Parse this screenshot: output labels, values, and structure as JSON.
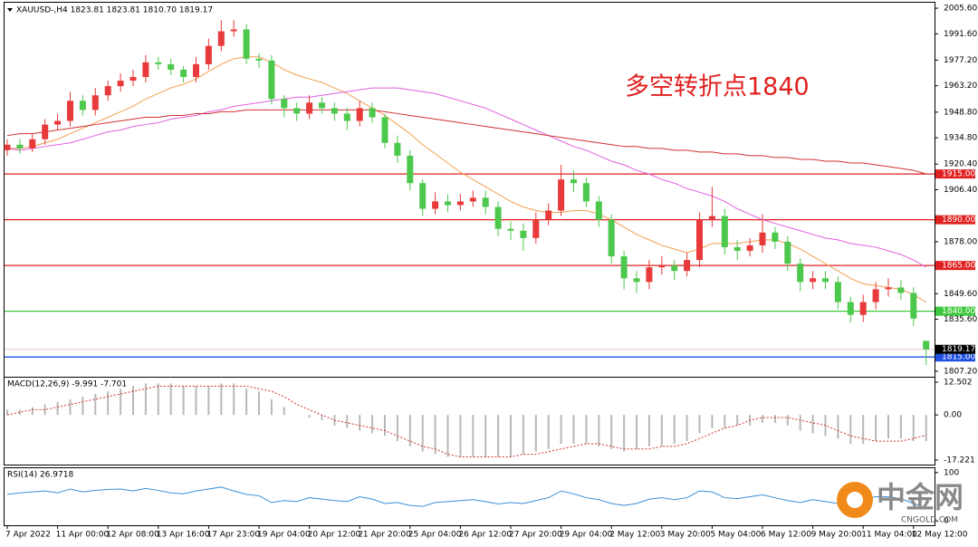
{
  "chart_data": [
    {
      "type": "candlestick",
      "title": "XAUUSD-,H4  1823.81 1823.81 1810.70 1819.17",
      "annotation": "多空转折点1840",
      "categories": [
        "7 Apr 2022",
        null,
        null,
        null,
        "11 Apr 00:00",
        null,
        null,
        null,
        "12 Apr 08:00",
        null,
        null,
        null,
        "13 Apr 16:00",
        null,
        null,
        null,
        "17 Apr 23:00",
        null,
        null,
        null,
        "19 Apr 04:00",
        null,
        null,
        null,
        "20 Apr 12:00",
        null,
        null,
        null,
        "21 Apr 20:00",
        null,
        null,
        null,
        "25 Apr 04:00",
        null,
        null,
        null,
        "26 Apr 12:00",
        null,
        null,
        null,
        "27 Apr 20:00",
        null,
        null,
        null,
        "29 Apr 04:00",
        null,
        null,
        null,
        "2 May 12:00",
        null,
        null,
        null,
        "3 May 20:00",
        null,
        null,
        null,
        "5 May 04:00",
        null,
        null,
        null,
        "6 May 12:00",
        null,
        null,
        null,
        "9 May 20:00",
        null,
        null,
        null,
        "11 May 04:00",
        null,
        null,
        null,
        "12 May 12:00",
        null
      ],
      "open": [
        1928,
        1931,
        1929,
        1934,
        1942,
        1944,
        1955,
        1950,
        1958,
        1963,
        1966,
        1968,
        1976,
        1975,
        1972,
        1968,
        1975,
        1985,
        1993,
        1994,
        1978,
        1977,
        1956,
        1951,
        1948,
        1954,
        1951,
        1948,
        1944,
        1951,
        1946,
        1932,
        1925,
        1910,
        1896,
        1900,
        1898,
        1900,
        1902,
        1897,
        1885,
        1884,
        1880,
        1890,
        1895,
        1912,
        1910,
        1900,
        1890,
        1870,
        1858,
        1856,
        1864,
        1865,
        1862,
        1868,
        1890,
        1892,
        1875,
        1873,
        1876,
        1883,
        1878,
        1866,
        1856,
        1858,
        1856,
        1845,
        1838,
        1845,
        1852,
        1853,
        1850,
        1823.81
      ],
      "high": [
        1934,
        1934,
        1937,
        1945,
        1948,
        1960,
        1958,
        1962,
        1966,
        1970,
        1972,
        1980,
        1979,
        1978,
        1974,
        1979,
        1989,
        1999,
        1999,
        1997,
        1981,
        1980,
        1958,
        1954,
        1958,
        1957,
        1954,
        1951,
        1955,
        1954,
        1948,
        1936,
        1928,
        1912,
        1905,
        1904,
        1904,
        1906,
        1906,
        1900,
        1889,
        1888,
        1894,
        1899,
        1920,
        1917,
        1913,
        1903,
        1893,
        1873,
        1862,
        1868,
        1870,
        1868,
        1872,
        1894,
        1908,
        1896,
        1879,
        1880,
        1893,
        1886,
        1881,
        1869,
        1862,
        1862,
        1859,
        1848,
        1849,
        1856,
        1858,
        1857,
        1853,
        1823.81
      ],
      "low": [
        1925,
        1926,
        1927,
        1931,
        1939,
        1941,
        1947,
        1947,
        1955,
        1960,
        1963,
        1965,
        1972,
        1969,
        1965,
        1965,
        1972,
        1982,
        1990,
        1975,
        1973,
        1953,
        1946,
        1944,
        1945,
        1948,
        1944,
        1939,
        1941,
        1943,
        1929,
        1921,
        1906,
        1892,
        1893,
        1894,
        1895,
        1897,
        1893,
        1881,
        1879,
        1873,
        1877,
        1887,
        1892,
        1905,
        1897,
        1886,
        1866,
        1852,
        1850,
        1852,
        1860,
        1857,
        1859,
        1864,
        1886,
        1871,
        1868,
        1870,
        1872,
        1874,
        1862,
        1851,
        1852,
        1852,
        1841,
        1834,
        1834,
        1841,
        1848,
        1846,
        1832,
        1810.7
      ],
      "close": [
        1931,
        1929,
        1934,
        1942,
        1944,
        1955,
        1950,
        1958,
        1963,
        1966,
        1968,
        1976,
        1975,
        1972,
        1968,
        1975,
        1985,
        1993,
        1994,
        1978,
        1977,
        1956,
        1951,
        1948,
        1954,
        1951,
        1948,
        1944,
        1951,
        1946,
        1932,
        1925,
        1910,
        1896,
        1900,
        1898,
        1900,
        1902,
        1897,
        1885,
        1884,
        1880,
        1890,
        1895,
        1912,
        1910,
        1900,
        1890,
        1870,
        1858,
        1856,
        1864,
        1865,
        1862,
        1868,
        1890,
        1892,
        1875,
        1873,
        1876,
        1883,
        1878,
        1866,
        1856,
        1858,
        1856,
        1845,
        1838,
        1845,
        1852,
        1853,
        1850,
        1836,
        1819.17
      ],
      "up_color": "#e83a3a",
      "down_color": "#4cc84c",
      "overlays": [
        {
          "color": "#f4a050",
          "values": [
            1929,
            1929,
            1930,
            1932,
            1934,
            1937,
            1940,
            1943,
            1946,
            1949,
            1952,
            1956,
            1959,
            1962,
            1964,
            1967,
            1971,
            1975,
            1978,
            1979,
            1979,
            1976,
            1972,
            1969,
            1967,
            1965,
            1962,
            1959,
            1955,
            1951,
            1947,
            1942,
            1937,
            1931,
            1926,
            1921,
            1916,
            1912,
            1908,
            1904,
            1900,
            1897,
            1895,
            1894,
            1894,
            1895,
            1895,
            1893,
            1890,
            1886,
            1882,
            1879,
            1876,
            1874,
            1872,
            1874,
            1877,
            1877,
            1877,
            1878,
            1879,
            1879,
            1877,
            1874,
            1870,
            1866,
            1862,
            1858,
            1855,
            1854,
            1853,
            1852,
            1849,
            1845
          ]
        },
        {
          "color": "#e060e0",
          "values": [
            1929,
            1928,
            1929,
            1930,
            1931,
            1932,
            1934,
            1936,
            1938,
            1939,
            1941,
            1942,
            1943,
            1945,
            1946,
            1947,
            1949,
            1950,
            1952,
            1953,
            1954,
            1955,
            1956,
            1957,
            1957,
            1958,
            1959,
            1960,
            1961,
            1962,
            1962,
            1962,
            1961,
            1960,
            1959,
            1957,
            1955,
            1953,
            1951,
            1948,
            1945,
            1942,
            1939,
            1936,
            1933,
            1930,
            1928,
            1925,
            1922,
            1920,
            1917,
            1915,
            1912,
            1910,
            1907,
            1905,
            1903,
            1900,
            1896,
            1893,
            1890,
            1888,
            1886,
            1884,
            1882,
            1880,
            1879,
            1877,
            1876,
            1875,
            1873,
            1871,
            1868,
            1864
          ]
        },
        {
          "color": "#d03030",
          "values": [
            1936,
            1937,
            1937,
            1938,
            1939,
            1940,
            1941,
            1942,
            1943,
            1944,
            1945,
            1946,
            1946,
            1947,
            1947,
            1948,
            1948,
            1949,
            1949,
            1950,
            1950,
            1950,
            1950,
            1950,
            1950,
            1950,
            1950,
            1950,
            1950,
            1950,
            1949,
            1948,
            1947,
            1946,
            1945,
            1944,
            1943,
            1942,
            1941,
            1940,
            1939,
            1938,
            1937,
            1936,
            1935,
            1934,
            1933,
            1932,
            1931,
            1930,
            1930,
            1929,
            1929,
            1928,
            1928,
            1927,
            1927,
            1926,
            1926,
            1925,
            1925,
            1924,
            1924,
            1923,
            1923,
            1922,
            1922,
            1921,
            1921,
            1920,
            1919,
            1918,
            1917,
            1915
          ]
        }
      ],
      "levels": [
        {
          "value": 1915,
          "label": "1915.00",
          "color": "#e02020"
        },
        {
          "value": 1890,
          "label": "1890.00",
          "color": "#e02020"
        },
        {
          "value": 1865,
          "label": "1865.00",
          "color": "#e02020"
        },
        {
          "value": 1840,
          "label": "1840.00",
          "color": "#3cc83c"
        },
        {
          "value": 1815,
          "label": "1815.00",
          "color": "#2050e0"
        }
      ],
      "price_line": {
        "value": 1819.17,
        "label": "1819.17",
        "color": "#e8c8d0"
      },
      "ylim": [
        1803.7,
        2008.6
      ],
      "yticks": [
        {
          "value": 2005.6,
          "label": "2005.60"
        },
        {
          "value": 1991.6,
          "label": "1991.60"
        },
        {
          "value": 1977.2,
          "label": "1977.20"
        },
        {
          "value": 1963.2,
          "label": "1963.20"
        },
        {
          "value": 1948.8,
          "label": "1948.80"
        },
        {
          "value": 1934.8,
          "label": "1934.80"
        },
        {
          "value": 1920.4,
          "label": "1920.40"
        },
        {
          "value": 1906.4,
          "label": "1906.40"
        },
        {
          "value": 1878,
          "label": "1878.00"
        },
        {
          "value": 1849.6,
          "label": "1849.60"
        },
        {
          "value": 1835.6,
          "label": "1835.60"
        },
        {
          "value": 1807.2,
          "label": "1807.20"
        }
      ]
    },
    {
      "type": "macd",
      "title": "MACD(12,26,9) -9.991 -7.701",
      "histogram": [
        2,
        2,
        3,
        4,
        5,
        6,
        7,
        8,
        9,
        10,
        11,
        12,
        12,
        12,
        11,
        11,
        11,
        12,
        12,
        10,
        9,
        6,
        3,
        0,
        -1,
        -2,
        -4,
        -5,
        -6,
        -7,
        -8,
        -10,
        -12,
        -14,
        -15,
        -16,
        -16,
        -16,
        -16,
        -16,
        -16,
        -15,
        -14,
        -13,
        -11,
        -11,
        -11,
        -12,
        -13,
        -14,
        -13,
        -12,
        -12,
        -11,
        -10,
        -7,
        -5,
        -5,
        -4,
        -4,
        -3,
        -3,
        -4,
        -6,
        -7,
        -8,
        -9,
        -11,
        -11,
        -10,
        -9,
        -9,
        -10,
        -9.991
      ],
      "signal": [
        0,
        1,
        2,
        2,
        3,
        4,
        5,
        6,
        7,
        8,
        9,
        10,
        11,
        11,
        11,
        11,
        11,
        11,
        11,
        11,
        10,
        9,
        7,
        4,
        2,
        0,
        -2,
        -3,
        -4,
        -5,
        -6,
        -8,
        -10,
        -12,
        -13,
        -15,
        -16,
        -16,
        -16,
        -16,
        -16,
        -15,
        -15,
        -14,
        -13,
        -12,
        -11,
        -11,
        -12,
        -13,
        -13,
        -13,
        -12,
        -12,
        -11,
        -9,
        -7,
        -5,
        -4,
        -2,
        -1,
        -1,
        -1,
        -2,
        -3,
        -4,
        -6,
        -8,
        -9,
        -10,
        -10,
        -10,
        -9,
        -7.701
      ],
      "histogram_color": "#b8b8b8",
      "signal_color": "#d03030",
      "ylim": [
        -18.95,
        14.23
      ],
      "yticks": [
        12.502,
        {
          "value": 0,
          "label": "0.00"
        },
        -17.221
      ]
    },
    {
      "type": "line",
      "title": "RSI(14) 26.9718",
      "values": [
        55,
        58,
        60,
        62,
        58,
        66,
        60,
        63,
        65,
        66,
        62,
        67,
        63,
        58,
        56,
        62,
        66,
        70,
        62,
        55,
        52,
        38,
        42,
        40,
        48,
        45,
        42,
        40,
        50,
        45,
        36,
        38,
        32,
        30,
        38,
        40,
        42,
        44,
        40,
        35,
        38,
        36,
        42,
        48,
        62,
        56,
        48,
        44,
        36,
        32,
        36,
        45,
        48,
        44,
        48,
        62,
        60,
        48,
        46,
        50,
        54,
        48,
        42,
        38,
        44,
        40,
        36,
        32,
        46,
        50,
        50,
        46,
        36,
        26.9718
      ],
      "color": "#3a8fd8",
      "ylim": [
        -9,
        109
      ],
      "yticks": [
        100,
        0
      ]
    }
  ],
  "watermark": {
    "brand": "中金网",
    "site": "CNGOLD.COM"
  }
}
